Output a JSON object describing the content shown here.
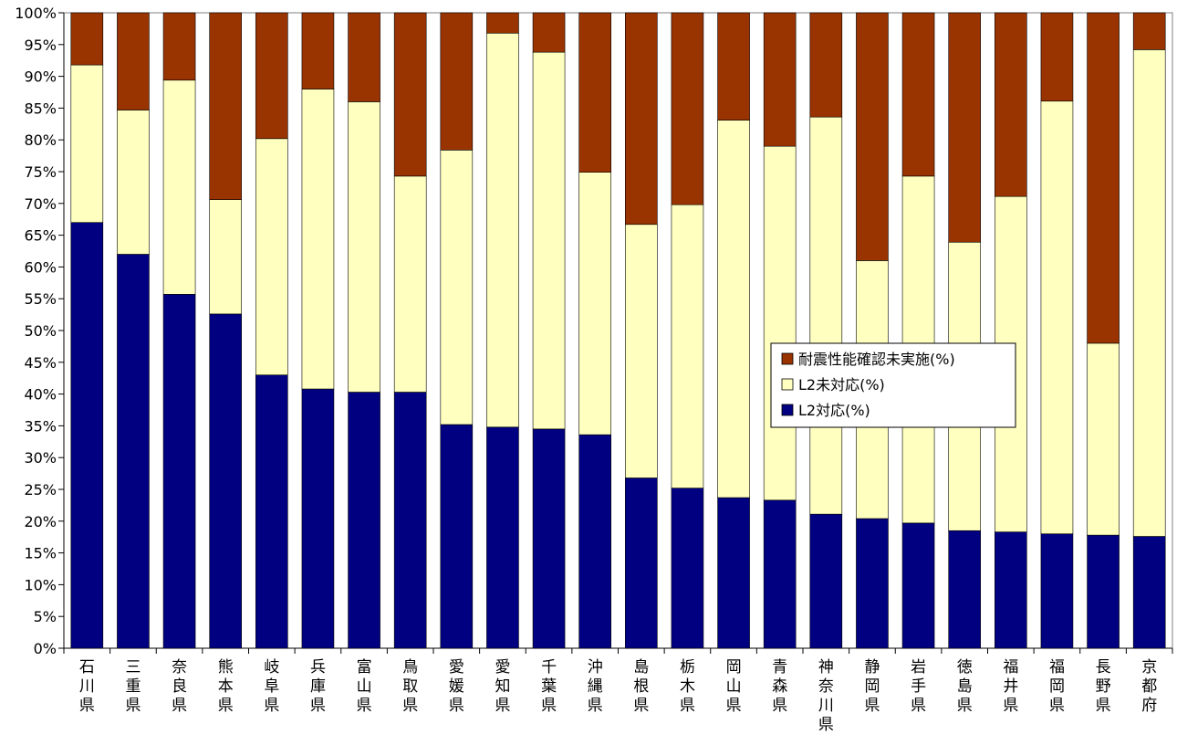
{
  "chart_data": {
    "type": "bar",
    "stacked": true,
    "title": "",
    "xlabel": "",
    "ylabel": "",
    "ylim": [
      0,
      100
    ],
    "ytick_step": 5,
    "ytick_suffix": "%",
    "grid": false,
    "legend_position": "center-right",
    "categories": [
      "石川県",
      "三重県",
      "奈良県",
      "熊本県",
      "岐阜県",
      "兵庫県",
      "富山県",
      "鳥取県",
      "愛媛県",
      "愛知県",
      "千葉県",
      "沖縄県",
      "島根県",
      "栃木県",
      "岡山県",
      "青森県",
      "神奈川県",
      "静岡県",
      "岩手県",
      "徳島県",
      "福井県",
      "福岡県",
      "長野県",
      "京都府"
    ],
    "series": [
      {
        "name": "L2対応(%)",
        "color": "#000080",
        "values": [
          67.0,
          62.0,
          55.7,
          52.6,
          43.0,
          40.8,
          40.3,
          40.3,
          35.2,
          34.8,
          34.5,
          33.6,
          26.8,
          25.2,
          23.7,
          23.3,
          21.1,
          20.4,
          19.7,
          18.5,
          18.3,
          18.0,
          17.8,
          17.6
        ]
      },
      {
        "name": "L2未対応(%)",
        "color": "#FFFFC0",
        "values": [
          24.8,
          22.7,
          33.7,
          18.0,
          37.2,
          47.2,
          45.7,
          34.0,
          43.2,
          62.0,
          59.3,
          41.3,
          39.9,
          44.6,
          59.4,
          55.7,
          62.5,
          40.6,
          54.6,
          45.4,
          52.8,
          68.1,
          30.2,
          76.6
        ]
      },
      {
        "name": "耐震性能確認未実施(%)",
        "color": "#993300",
        "values": [
          8.2,
          15.3,
          10.6,
          29.4,
          19.8,
          12.0,
          14.0,
          25.7,
          21.6,
          3.2,
          6.2,
          25.1,
          33.3,
          30.2,
          16.9,
          21.0,
          16.4,
          39.0,
          25.7,
          36.1,
          28.9,
          13.9,
          52.0,
          5.8
        ]
      }
    ],
    "legend_order": [
      "耐震性能確認未実施(%)",
      "L2未対応(%)",
      "L2対応(%)"
    ]
  }
}
